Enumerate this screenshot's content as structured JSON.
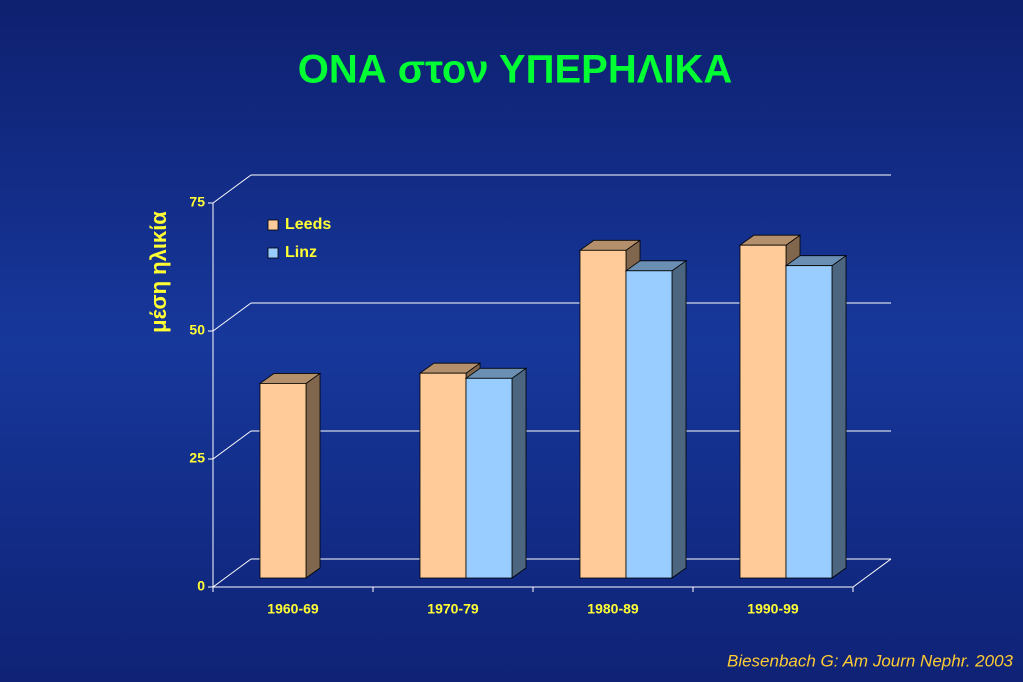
{
  "chart_data": {
    "type": "bar",
    "title": "ΟΝΑ στον ΥΠΕΡΗΛΙΚΑ",
    "y_label": "μέση ηλικία",
    "source": "Biesenbach G: Am Journ Nephr. 2003",
    "categories": [
      "1960-69",
      "1970-79",
      "1980-89",
      "1990-99"
    ],
    "series": [
      {
        "name": "Leeds",
        "color": "#ffcc99",
        "values": [
          38,
          40,
          64,
          65
        ]
      },
      {
        "name": "Linz",
        "color": "#99ccff",
        "values": [
          null,
          39,
          60,
          61
        ]
      }
    ],
    "ylim": [
      0,
      75
    ],
    "yticks": [
      0,
      25,
      50,
      75
    ],
    "grid": true,
    "legend": "top-left"
  }
}
